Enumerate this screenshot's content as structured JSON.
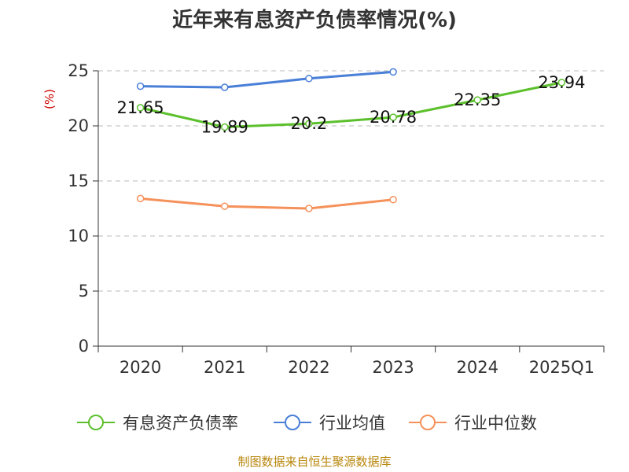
{
  "chart_data": {
    "type": "line",
    "title": "近年来有息资产负债率情况(%)",
    "ylabel": "(%)",
    "xlabel": "",
    "categories": [
      "2020",
      "2021",
      "2022",
      "2023",
      "2024",
      "2025Q1"
    ],
    "ylim": [
      0,
      25
    ],
    "yticks": [
      "0",
      "5",
      "10",
      "15",
      "20",
      "25"
    ],
    "grid": true,
    "legend_position": "bottom",
    "series": [
      {
        "name": "有息资产负债率",
        "color": "#5cc02c",
        "values": [
          21.65,
          19.89,
          20.2,
          20.78,
          22.35,
          23.94
        ],
        "labels": [
          "21.65",
          "19.89",
          "20.2",
          "20.78",
          "22.35",
          "23.94"
        ]
      },
      {
        "name": "行业均值",
        "color": "#4a7fd8",
        "values": [
          23.6,
          23.5,
          24.3,
          24.9,
          null,
          null
        ]
      },
      {
        "name": "行业中位数",
        "color": "#f5915a",
        "values": [
          13.4,
          12.7,
          12.5,
          13.3,
          null,
          null
        ]
      }
    ],
    "source": "制图数据来自恒生聚源数据库",
    "colors": {
      "axis": "#333333",
      "grid": "#bbbbbb",
      "ylabel": "#cc0000",
      "source": "#b8860b"
    }
  }
}
